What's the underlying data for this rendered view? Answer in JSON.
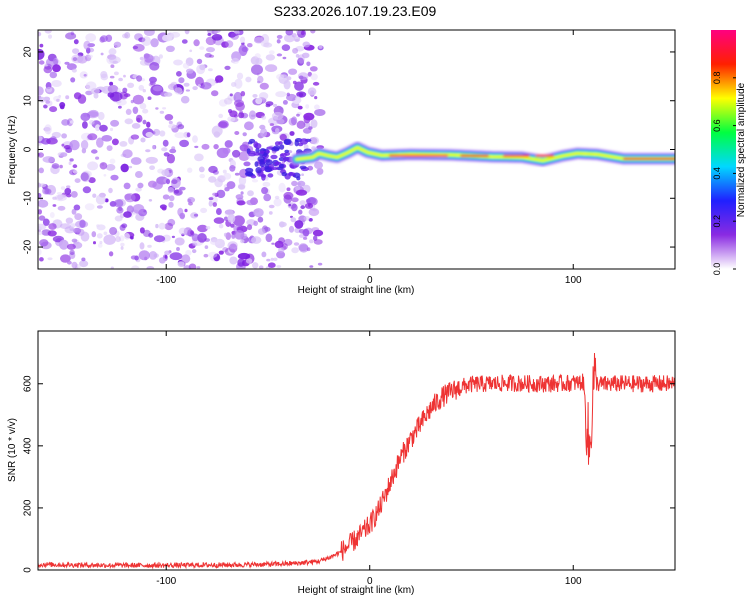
{
  "title": "S233.2026.107.19.23.E09",
  "chart_data": [
    {
      "type": "heatmap",
      "name": "spectrogram",
      "xlabel": "Height of straight line (km)",
      "ylabel": "Frequency (Hz)",
      "xlim": [
        -163,
        150
      ],
      "ylim": [
        -24.5,
        24.5
      ],
      "xticks": [
        -100,
        0,
        100
      ],
      "yticks": [
        -20,
        -10,
        0,
        10,
        20
      ],
      "noise_region": {
        "x_start": -163,
        "x_end": -28,
        "description": "scattered purple speckle"
      },
      "carrier_track": [
        {
          "x": -36,
          "y": -2.0
        },
        {
          "x": -28,
          "y": -1.6
        },
        {
          "x": -25,
          "y": -0.8
        },
        {
          "x": -20,
          "y": -1.3
        },
        {
          "x": -16,
          "y": -1.6
        },
        {
          "x": -11,
          "y": -0.7
        },
        {
          "x": -6,
          "y": 0.4
        },
        {
          "x": -1,
          "y": -0.6
        },
        {
          "x": 6,
          "y": -1.2
        },
        {
          "x": 20,
          "y": -1.0
        },
        {
          "x": 40,
          "y": -1.1
        },
        {
          "x": 60,
          "y": -1.5
        },
        {
          "x": 75,
          "y": -1.6
        },
        {
          "x": 85,
          "y": -2.3
        },
        {
          "x": 95,
          "y": -1.3
        },
        {
          "x": 102,
          "y": -0.8
        },
        {
          "x": 112,
          "y": -1.0
        },
        {
          "x": 125,
          "y": -1.9
        },
        {
          "x": 150,
          "y": -1.9
        }
      ],
      "colorbar": {
        "label": "Normalized spectral amplitude",
        "ticks": [
          "0.0",
          "0.2",
          "0.4",
          "0.6",
          "0.8"
        ],
        "tick_values": [
          0.0,
          0.2,
          0.4,
          0.6,
          0.8
        ],
        "range": [
          0.0,
          1.0
        ],
        "colors": [
          "#ffffff",
          "#8a2be2",
          "#2020ff",
          "#00d8ff",
          "#00ff40",
          "#ffff00",
          "#ff2000",
          "#ff0080"
        ]
      }
    },
    {
      "type": "line",
      "name": "snr",
      "xlabel": "Height of straight line (km)",
      "ylabel": "SNR (10 * v/v)",
      "xlim": [
        -163,
        150
      ],
      "ylim": [
        0,
        770
      ],
      "xticks": [
        -100,
        0,
        100
      ],
      "yticks": [
        0,
        200,
        400,
        600
      ],
      "color": "#ee3333",
      "series": [
        {
          "name": "SNR",
          "x": [
            -163,
            -140,
            -120,
            -100,
            -80,
            -60,
            -45,
            -35,
            -25,
            -20,
            -15,
            -10,
            -5,
            0,
            5,
            10,
            15,
            20,
            25,
            30,
            35,
            40,
            45,
            50,
            60,
            70,
            80,
            90,
            100,
            105,
            108,
            110,
            112,
            115,
            120,
            130,
            140,
            150
          ],
          "y": [
            18,
            16,
            15,
            15,
            16,
            17,
            19,
            22,
            28,
            40,
            55,
            80,
            110,
            145,
            200,
            280,
            360,
            420,
            470,
            520,
            555,
            575,
            590,
            598,
            600,
            602,
            600,
            600,
            602,
            605,
            370,
            620,
            600,
            598,
            600,
            600,
            600,
            600
          ]
        }
      ]
    }
  ]
}
